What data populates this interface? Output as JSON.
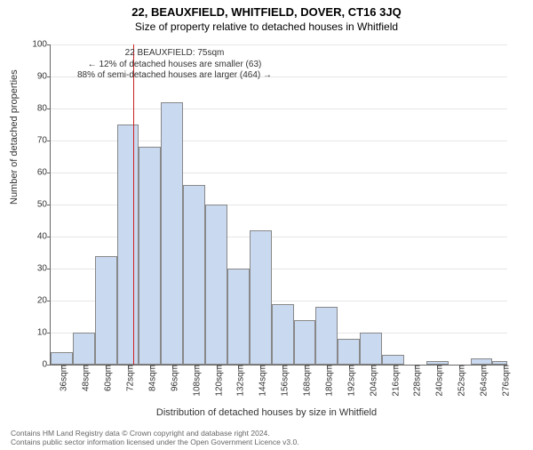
{
  "title": "22, BEAUXFIELD, WHITFIELD, DOVER, CT16 3JQ",
  "subtitle": "Size of property relative to detached houses in Whitfield",
  "ylabel": "Number of detached properties",
  "xlabel": "Distribution of detached houses by size in Whitfield",
  "chart": {
    "type": "histogram",
    "ylim": [
      0,
      100
    ],
    "ytick_step": 10,
    "bar_fill": "#c9d9f0",
    "bar_border": "#888888",
    "grid_color": "#e6e6e6",
    "marker_color": "#cc2020",
    "marker_x": 75,
    "x_min": 30,
    "x_max": 278,
    "x_tick_start": 36,
    "x_tick_step": 12,
    "x_tick_suffix": "sqm",
    "bars": [
      {
        "x0": 30,
        "x1": 42,
        "v": 4
      },
      {
        "x0": 42,
        "x1": 54,
        "v": 10
      },
      {
        "x0": 54,
        "x1": 66,
        "v": 34
      },
      {
        "x0": 66,
        "x1": 78,
        "v": 75
      },
      {
        "x0": 78,
        "x1": 90,
        "v": 68
      },
      {
        "x0": 90,
        "x1": 102,
        "v": 82
      },
      {
        "x0": 102,
        "x1": 114,
        "v": 56
      },
      {
        "x0": 114,
        "x1": 126,
        "v": 50
      },
      {
        "x0": 126,
        "x1": 138,
        "v": 30
      },
      {
        "x0": 138,
        "x1": 150,
        "v": 42
      },
      {
        "x0": 150,
        "x1": 162,
        "v": 19
      },
      {
        "x0": 162,
        "x1": 174,
        "v": 14
      },
      {
        "x0": 174,
        "x1": 186,
        "v": 18
      },
      {
        "x0": 186,
        "x1": 198,
        "v": 8
      },
      {
        "x0": 198,
        "x1": 210,
        "v": 10
      },
      {
        "x0": 210,
        "x1": 222,
        "v": 3
      },
      {
        "x0": 222,
        "x1": 234,
        "v": 0
      },
      {
        "x0": 234,
        "x1": 246,
        "v": 1
      },
      {
        "x0": 246,
        "x1": 258,
        "v": 0
      },
      {
        "x0": 258,
        "x1": 270,
        "v": 2
      },
      {
        "x0": 270,
        "x1": 278,
        "v": 1
      }
    ]
  },
  "annotation": {
    "line1": "22 BEAUXFIELD: 75sqm",
    "line2": "← 12% of detached houses are smaller (63)",
    "line3": "88% of semi-detached houses are larger (464) →"
  },
  "attribution": {
    "line1": "Contains HM Land Registry data © Crown copyright and database right 2024.",
    "line2": "Contains public sector information licensed under the Open Government Licence v3.0."
  }
}
